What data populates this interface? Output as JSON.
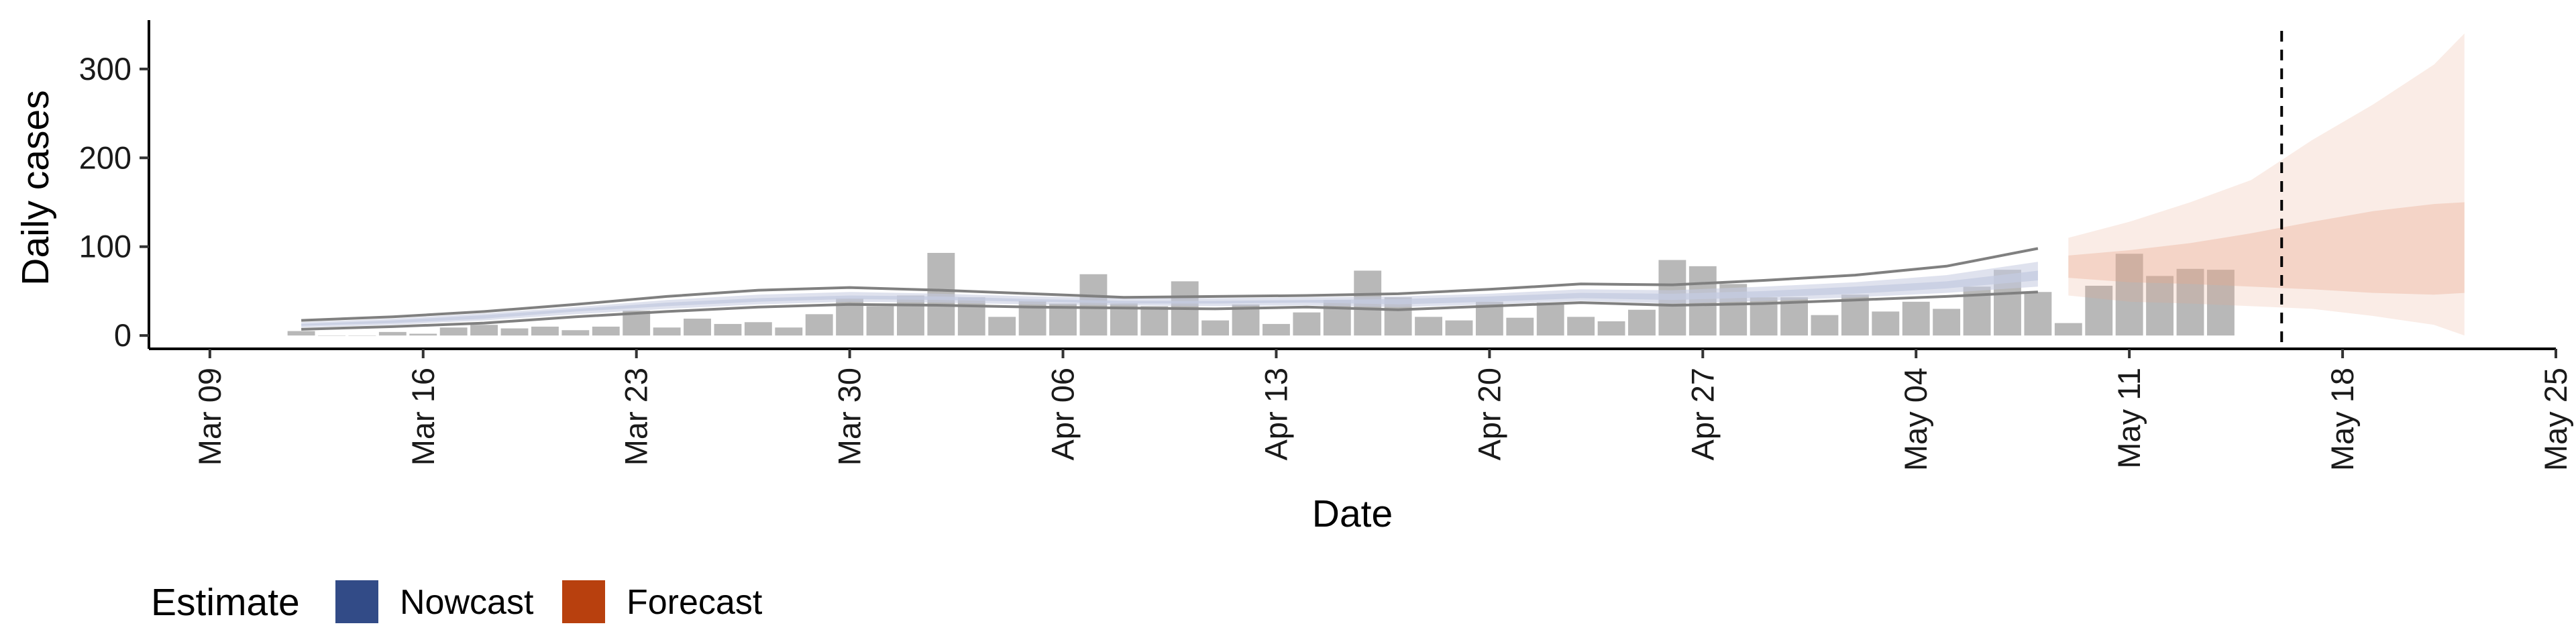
{
  "chart_data": {
    "type": "bar",
    "title": "",
    "xlabel": "Date",
    "ylabel": "Daily cases",
    "ylim": [
      -15,
      355
    ],
    "y_ticks": [
      0,
      100,
      200,
      300
    ],
    "x_domain": [
      "2020-03-07",
      "2020-05-25"
    ],
    "x_ticks": [
      {
        "date": "2020-03-09",
        "label": "Mar 09"
      },
      {
        "date": "2020-03-16",
        "label": "Mar 16"
      },
      {
        "date": "2020-03-23",
        "label": "Mar 23"
      },
      {
        "date": "2020-03-30",
        "label": "Mar 30"
      },
      {
        "date": "2020-04-06",
        "label": "Apr 06"
      },
      {
        "date": "2020-04-13",
        "label": "Apr 13"
      },
      {
        "date": "2020-04-20",
        "label": "Apr 20"
      },
      {
        "date": "2020-04-27",
        "label": "Apr 27"
      },
      {
        "date": "2020-05-04",
        "label": "May 04"
      },
      {
        "date": "2020-05-11",
        "label": "May 11"
      },
      {
        "date": "2020-05-18",
        "label": "May 18"
      },
      {
        "date": "2020-05-25",
        "label": "May 25"
      }
    ],
    "reported_cases": {
      "start_date": "2020-03-12",
      "values": [
        5,
        0,
        0,
        4,
        2,
        9,
        12,
        8,
        10,
        6,
        10,
        28,
        9,
        19,
        13,
        15,
        9,
        24,
        42,
        33,
        45,
        93,
        43,
        21,
        39,
        36,
        69,
        36,
        33,
        61,
        17,
        35,
        13,
        26,
        40,
        73,
        43,
        21,
        17,
        38,
        20,
        37,
        21,
        16,
        29,
        85,
        78,
        58,
        43,
        43,
        23,
        46,
        27,
        38,
        30,
        55,
        74,
        49,
        14,
        56,
        92,
        67,
        75,
        74
      ]
    },
    "reported_bar_color": "#a6a6a6",
    "bounds_line": {
      "dates": [
        "2020-03-12",
        "2020-03-15",
        "2020-03-18",
        "2020-03-21",
        "2020-03-24",
        "2020-03-27",
        "2020-03-30",
        "2020-04-02",
        "2020-04-05",
        "2020-04-08",
        "2020-04-11",
        "2020-04-14",
        "2020-04-17",
        "2020-04-20",
        "2020-04-23",
        "2020-04-26",
        "2020-04-29",
        "2020-05-02",
        "2020-05-05",
        "2020-05-08"
      ],
      "upper": [
        17,
        21,
        27,
        35,
        44,
        51,
        54,
        51,
        47,
        43,
        44,
        45,
        47,
        52,
        58,
        57,
        62,
        68,
        78,
        98
      ],
      "lower": [
        7,
        10,
        14,
        21,
        27,
        32,
        35,
        34,
        32,
        31,
        30,
        32,
        29,
        33,
        37,
        34,
        36,
        40,
        44,
        49
      ],
      "color": "#808080"
    },
    "nowcast": {
      "dates": [
        "2020-03-12",
        "2020-03-15",
        "2020-03-18",
        "2020-03-21",
        "2020-03-24",
        "2020-03-27",
        "2020-03-30",
        "2020-04-02",
        "2020-04-05",
        "2020-04-08",
        "2020-04-11",
        "2020-04-14",
        "2020-04-17",
        "2020-04-20",
        "2020-04-23",
        "2020-04-26",
        "2020-04-29",
        "2020-05-02",
        "2020-05-05",
        "2020-05-08"
      ],
      "outer_upper": [
        15,
        19,
        25,
        32,
        40,
        46,
        49,
        47,
        44,
        42,
        42,
        43,
        44,
        47,
        52,
        51,
        55,
        60,
        68,
        83
      ],
      "outer_lower": [
        9,
        12,
        17,
        24,
        30,
        35,
        38,
        37,
        35,
        34,
        33,
        34,
        32,
        35,
        39,
        36,
        39,
        43,
        48,
        55
      ],
      "inner_upper": [
        13,
        17,
        23,
        30,
        37,
        42,
        45,
        44,
        41,
        39,
        39,
        40,
        41,
        44,
        48,
        47,
        50,
        55,
        61,
        73
      ],
      "inner_lower": [
        11,
        14,
        19,
        27,
        33,
        38,
        41,
        40,
        38,
        36,
        36,
        37,
        35,
        38,
        42,
        40,
        43,
        47,
        53,
        62
      ]
    },
    "forecast": {
      "dates": [
        "2020-05-09",
        "2020-05-11",
        "2020-05-13",
        "2020-05-15",
        "2020-05-17",
        "2020-05-19",
        "2020-05-21",
        "2020-05-22"
      ],
      "outer_upper": [
        110,
        128,
        150,
        175,
        220,
        260,
        305,
        340
      ],
      "outer_lower": [
        45,
        38,
        36,
        33,
        30,
        22,
        12,
        0
      ],
      "inner_upper": [
        90,
        96,
        104,
        115,
        128,
        140,
        148,
        150
      ],
      "inner_lower": [
        65,
        60,
        58,
        55,
        52,
        48,
        46,
        48
      ]
    },
    "vline_date": "2020-05-16",
    "legend": {
      "title": "Estimate",
      "position": "bottom-left",
      "entries": [
        {
          "label": "Nowcast",
          "color": "#324b87"
        },
        {
          "label": "Forecast",
          "color": "#b8400e"
        }
      ]
    },
    "colors": {
      "nowcast_band": "#c4cbe0",
      "forecast_band": "#e8a98c",
      "axis": "#000000"
    },
    "grid": false
  }
}
